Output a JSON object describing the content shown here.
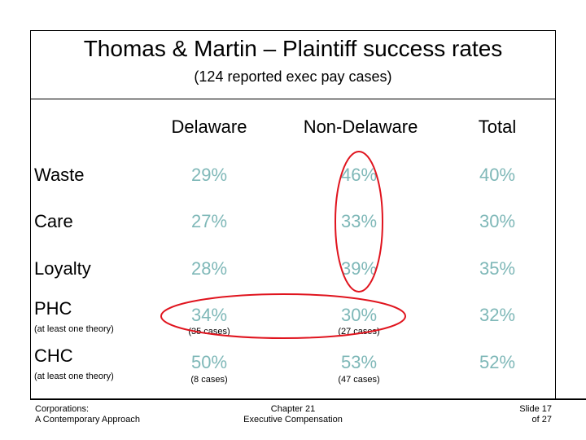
{
  "slide": {
    "title": "Thomas & Martin – Plaintiff success rates",
    "subtitle": "(124 reported exec pay cases)"
  },
  "table": {
    "columns": [
      "Delaware",
      "Non-Delaware",
      "Total"
    ],
    "rows": [
      {
        "label": "Waste",
        "note": "",
        "values": [
          "29%",
          "46%",
          "40%"
        ],
        "notes": [
          "",
          "",
          ""
        ]
      },
      {
        "label": "Care",
        "note": "",
        "values": [
          "27%",
          "33%",
          "30%"
        ],
        "notes": [
          "",
          "",
          ""
        ]
      },
      {
        "label": "Loyalty",
        "note": "",
        "values": [
          "28%",
          "39%",
          "35%"
        ],
        "notes": [
          "",
          "",
          ""
        ]
      },
      {
        "label": "PHC",
        "note": "(at least one theory)",
        "values": [
          "34%",
          "30%",
          "32%"
        ],
        "notes": [
          "(35 cases)",
          "(27 cases)",
          ""
        ]
      },
      {
        "label": "CHC",
        "note": "(at least one theory)",
        "values": [
          "50%",
          "53%",
          "52%"
        ],
        "notes": [
          "(8 cases)",
          "(47 cases)",
          ""
        ]
      }
    ],
    "cell_color": "#7fb8b8",
    "highlight_color": "#e0141e"
  },
  "footer": {
    "left_line1": "Corporations:",
    "left_line2": "A Contemporary Approach",
    "center_line1": "Chapter 21",
    "center_line2": "Executive Compensation",
    "right_line1": "Slide 17",
    "right_line2": "of 27"
  }
}
